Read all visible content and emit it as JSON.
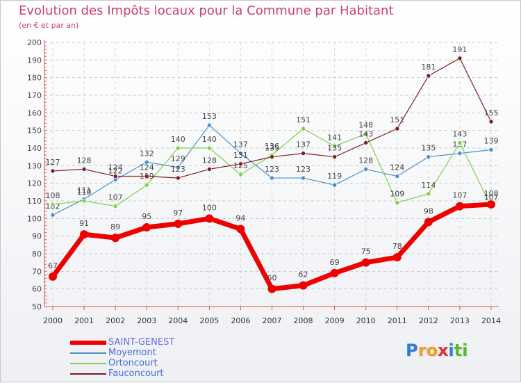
{
  "header": {
    "title": "Evolution des Impôts locaux pour la Commune par Habitant",
    "subtitle": "(en € et par an)"
  },
  "chart_data": {
    "type": "line",
    "title": "Evolution des Impôts locaux pour la Commune par Habitant",
    "subtitle": "(en € et par an)",
    "x": [
      2000,
      2001,
      2002,
      2003,
      2004,
      2005,
      2006,
      2007,
      2008,
      2009,
      2010,
      2011,
      2012,
      2013,
      2014
    ],
    "ylim": [
      50,
      200
    ],
    "yticks": [
      50,
      60,
      70,
      80,
      90,
      100,
      110,
      120,
      130,
      140,
      150,
      160,
      170,
      180,
      190,
      200
    ],
    "grid": true,
    "legend_position": "bottom-left",
    "series": [
      {
        "name": "SAINT-GENEST",
        "color": "#ee0000",
        "values": [
          67,
          91,
          89,
          95,
          97,
          100,
          94,
          60,
          62,
          69,
          75,
          78,
          98,
          107,
          108
        ]
      },
      {
        "name": "Moyemont",
        "color": "#4a90c8",
        "values": [
          102,
          111,
          122,
          132,
          129,
          153,
          137,
          123,
          123,
          119,
          128,
          124,
          135,
          137,
          139
        ]
      },
      {
        "name": "Ortoncourt",
        "color": "#7fd14a",
        "values": [
          108,
          110,
          107,
          119,
          140,
          140,
          125,
          136,
          151,
          141,
          148,
          109,
          114,
          143,
          107
        ]
      },
      {
        "name": "Fauconcourt",
        "color": "#7a1f1f",
        "values": [
          127,
          128,
          124,
          124,
          123,
          128,
          131,
          135,
          137,
          135,
          143,
          151,
          181,
          191,
          155
        ]
      }
    ]
  },
  "logo": {
    "letters": [
      "P",
      "r",
      "o",
      "x",
      "i",
      "t",
      "i"
    ],
    "colors": [
      "#2e7fd6",
      "#f0a020",
      "#f0a020",
      "#e8302e",
      "#2e7fd6",
      "#5cb82e",
      "#5cb82e"
    ]
  }
}
